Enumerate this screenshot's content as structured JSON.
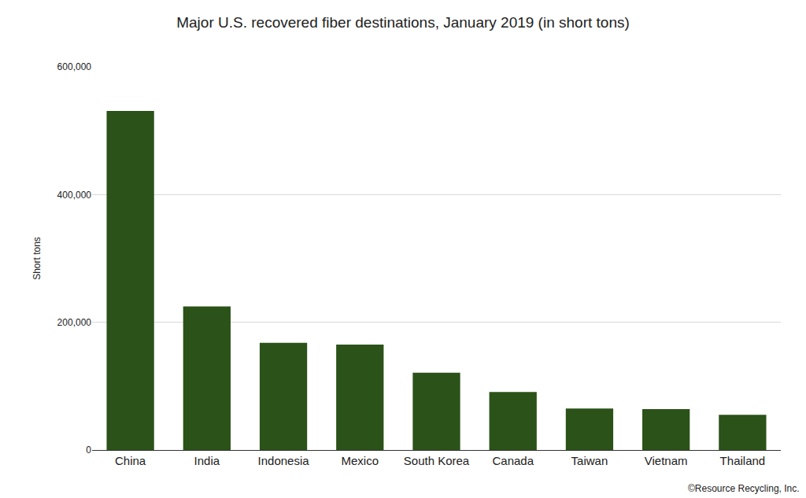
{
  "chart_data": {
    "type": "bar",
    "title": "Major U.S. recovered fiber destinations, January 2019 (in short tons)",
    "y_label": "Short tons",
    "categories": [
      "China",
      "India",
      "Indonesia",
      "Mexico",
      "South Korea",
      "Canada",
      "Taiwan",
      "Vietnam",
      "Thailand"
    ],
    "values": [
      531000,
      225000,
      168000,
      165000,
      121000,
      91000,
      65000,
      64000,
      55000
    ],
    "color": "#2b5219",
    "ylim": [
      0,
      600000
    ],
    "yticks": [
      0,
      {
        "value": 200000,
        "label": "200,000"
      },
      {
        "value": 400000,
        "label": "400,000"
      },
      {
        "value": 600000,
        "label": "600,000"
      }
    ],
    "grid": true,
    "annotations": [
      "©Resource Recycling, Inc."
    ]
  }
}
